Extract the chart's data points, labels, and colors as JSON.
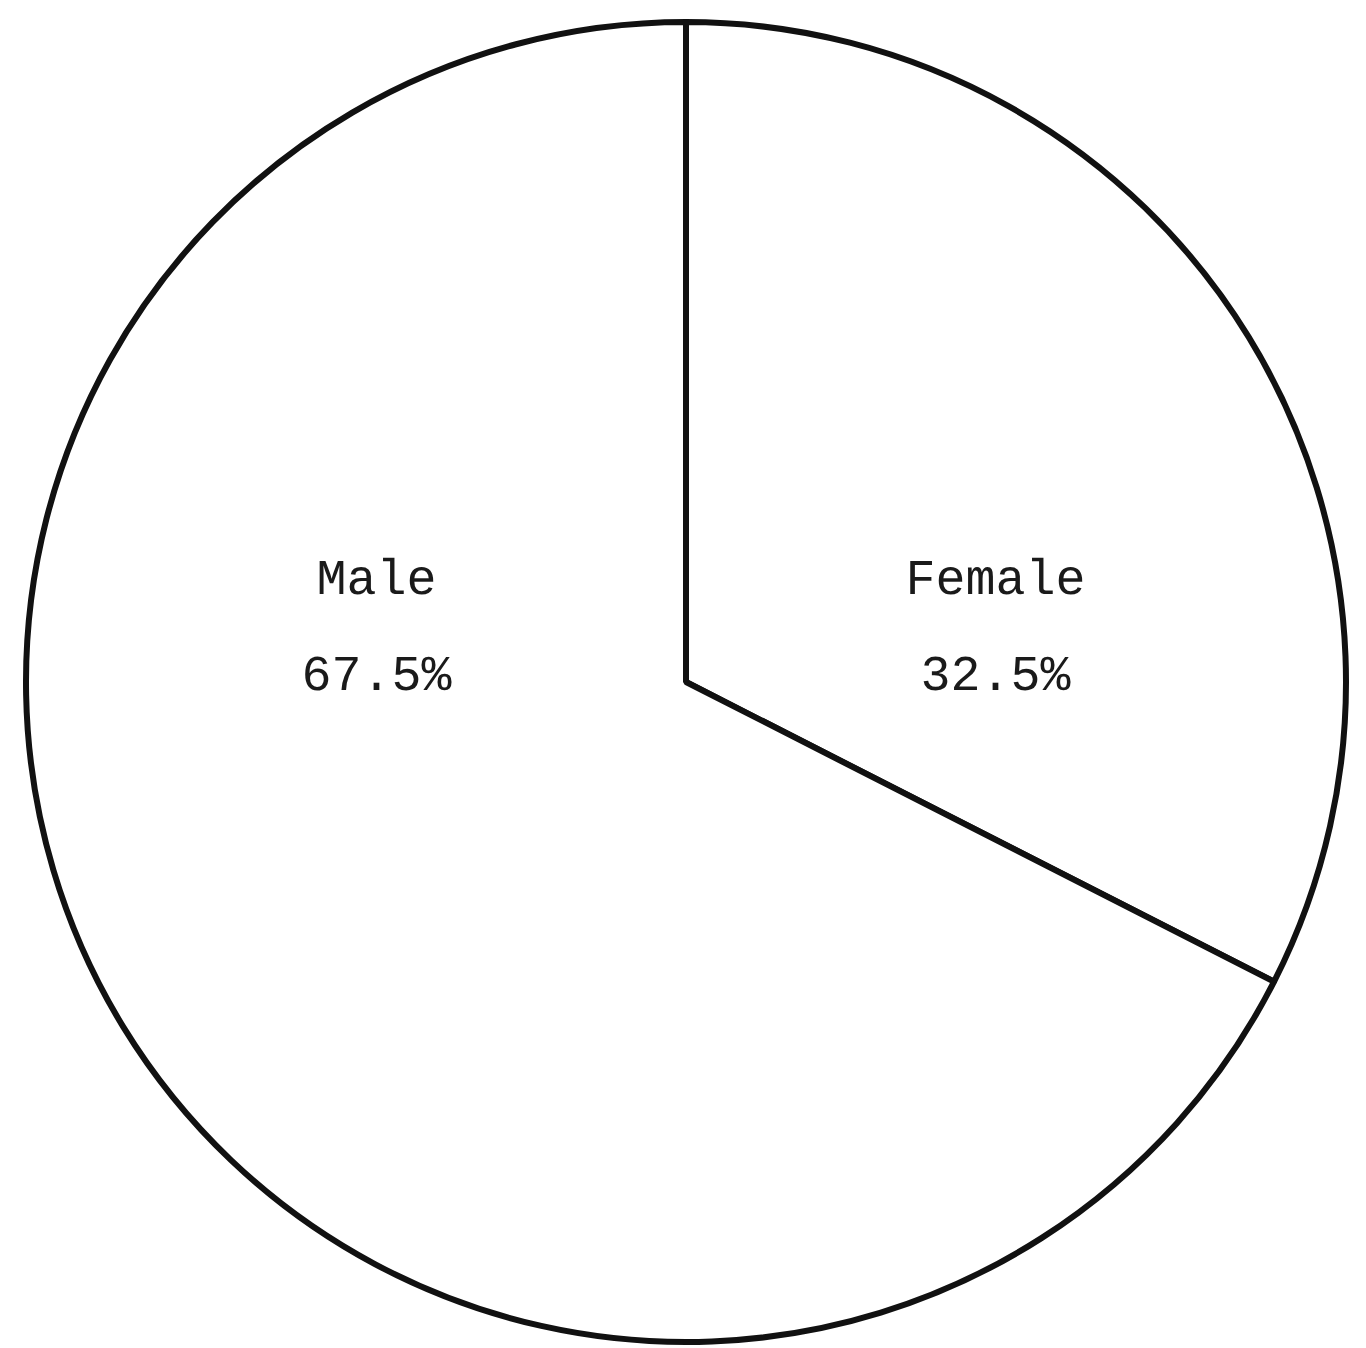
{
  "chart_data": {
    "type": "pie",
    "categories": [
      "Female",
      "Male"
    ],
    "values": [
      32.5,
      67.5
    ],
    "colors": [
      "#ffffff",
      "#ffffff"
    ],
    "value_labels": [
      "32.5%",
      "67.5%"
    ],
    "legend": false
  }
}
